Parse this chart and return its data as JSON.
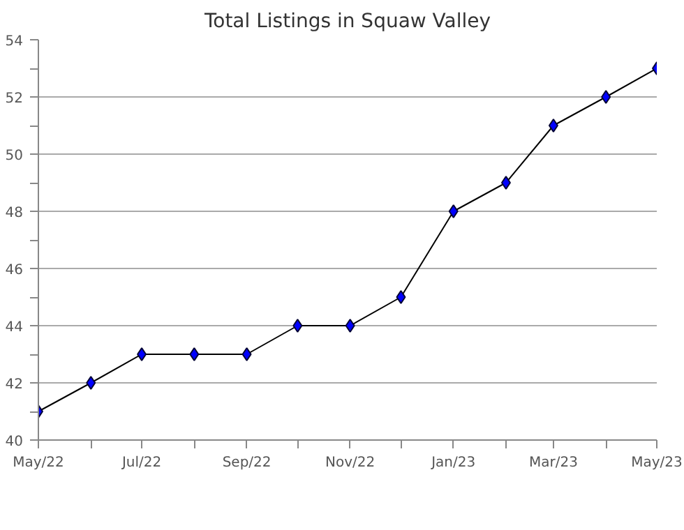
{
  "chart_data": {
    "type": "line",
    "title": "Total Listings in Squaw Valley",
    "x": [
      "2022-05",
      "2022-06",
      "2022-07",
      "2022-08",
      "2022-09",
      "2022-10",
      "2022-11",
      "2022-12",
      "2023-01",
      "2023-02",
      "2023-03",
      "2023-04",
      "2023-05"
    ],
    "series": [
      {
        "color": "#0000ff",
        "values": [
          41,
          42,
          43,
          43,
          43,
          44,
          44,
          45,
          48,
          49,
          51,
          52,
          53
        ]
      }
    ],
    "xlim": [
      "2022-05",
      "2023-05"
    ],
    "xticks": [
      {
        "value": "2022-05",
        "label": "May/22"
      },
      {
        "value": "2022-06",
        "label": null
      },
      {
        "value": "2022-07",
        "label": "Jul/22"
      },
      {
        "value": "2022-08",
        "label": null
      },
      {
        "value": "2022-09",
        "label": "Sep/22"
      },
      {
        "value": "2022-10",
        "label": null
      },
      {
        "value": "2022-11",
        "label": "Nov/22"
      },
      {
        "value": "2022-12",
        "label": null
      },
      {
        "value": "2023-01",
        "label": "Jan/23"
      },
      {
        "value": "2023-02",
        "label": null
      },
      {
        "value": "2023-03",
        "label": "Mar/23"
      },
      {
        "value": "2023-04",
        "label": null
      },
      {
        "value": "2023-05",
        "label": "May/23"
      }
    ],
    "ylim": [
      40,
      54
    ],
    "yticks": [
      40,
      {
        "value": 41,
        "label": null
      },
      42,
      {
        "value": 43,
        "label": null
      },
      44,
      {
        "value": 45,
        "label": null
      },
      46,
      {
        "value": 47,
        "label": null
      },
      48,
      {
        "value": 49,
        "label": null
      },
      50,
      {
        "value": 51,
        "label": null
      },
      52,
      {
        "value": 53,
        "label": null
      },
      54
    ],
    "grid": "y",
    "marker": "diamond",
    "line_style": "solid"
  }
}
